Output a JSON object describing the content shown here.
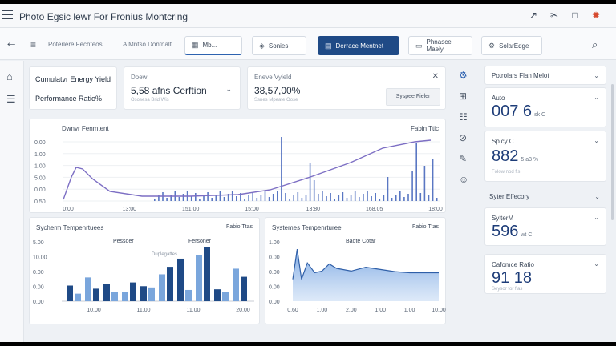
{
  "window": {
    "title": "Photo Egsic lewr For Fronius Montcring"
  },
  "nav": {
    "crumb1": "Poterlere Fechteos",
    "crumb2": "A Mntso Dontnalt...",
    "tabs": [
      {
        "label": "Mb...",
        "icon": "grid-icon"
      },
      {
        "label": "Sonies",
        "icon": "shield-icon"
      },
      {
        "label": "Derrace Mentnet",
        "icon": "table-icon"
      },
      {
        "label": "Phnasce Maeiy",
        "icon": "display-icon"
      },
      {
        "label": "SolarEdge",
        "icon": "settings-icon"
      }
    ]
  },
  "kpis": {
    "cumulative_label": "Cumulatvr Energy Yield",
    "performance_label": "Performance Ratio%",
    "device_label": "Doew",
    "device_value": "5,58 afns Cerftion",
    "device_sub": "Ososesa Brid Wis",
    "energy_label": "Eneve Vyield",
    "energy_value": "38,57,00%",
    "energy_sub": "Ssnes Mpeate Oose",
    "energy_button": "Syspee Fieler"
  },
  "main_chart": {
    "title": "Dwnvr Fenmtent",
    "legend": "Fabin Ttic",
    "ylabels": [
      "0.00",
      "1.00",
      "1.00",
      "5.00",
      "0.00",
      "0.50"
    ],
    "xlabels": [
      "0:00",
      "13:00",
      "151:00",
      "15:00",
      "13:80",
      "168.05",
      "18:00"
    ]
  },
  "bar_chart": {
    "title": "Sycherm Tempenrtuees",
    "legend": "Fabio Ttas",
    "label_a": "Pessoer",
    "label_b": "Fersoner",
    "tag": "Duplegattes",
    "ylabels": [
      "5.00",
      "10.00",
      "0.00",
      "0.00",
      "0.00"
    ],
    "xlabels": [
      "10.00",
      "11.00",
      "11.00",
      "20.00"
    ],
    "chart_data": {
      "type": "bar",
      "series": [
        {
          "name": "Pessoer",
          "values": [
            2.5,
            3.8,
            2.8,
            1.5,
            2.4,
            4.3,
            6.8,
            7.4,
            1.9,
            5.2
          ]
        },
        {
          "name": "Fersoner",
          "values": [
            1.2,
            2.0,
            1.5,
            3.0,
            2.2,
            5.5,
            1.8,
            8.6,
            1.5,
            3.9
          ]
        }
      ],
      "ylim": [
        0,
        10
      ]
    }
  },
  "area_chart": {
    "title": "Systemes Tempenrturee",
    "legend": "Fabio Ttas",
    "label": "Baote Cotar",
    "ylabels": [
      "1.00",
      "0.00",
      "0.00",
      "0.00",
      "0.00"
    ],
    "xlabels": [
      "0.60",
      "1.00",
      "2.00",
      "1:00",
      "1.00",
      "10.00"
    ],
    "chart_data": {
      "type": "area",
      "x": [
        0,
        0.3,
        0.6,
        1,
        1.5,
        2,
        2.5,
        3,
        4,
        5,
        6,
        7,
        8,
        9,
        10
      ],
      "y": [
        0.4,
        0.95,
        0.4,
        0.7,
        0.52,
        0.55,
        0.68,
        0.6,
        0.55,
        0.62,
        0.58,
        0.54,
        0.52,
        0.52,
        0.52
      ],
      "ylim": [
        0,
        1.2
      ]
    }
  },
  "right_panel": {
    "header": "Potrolars Flan Melot",
    "items": [
      {
        "label": "Auto",
        "value": "007 6",
        "unit": "sk C",
        "muted": ""
      },
      {
        "label": "Spicy C",
        "value": "882",
        "unit": "5 a3 %",
        "muted": "Folow nod fis"
      },
      {
        "label": "Syter Effecory",
        "value": "",
        "unit": "",
        "muted": ""
      },
      {
        "label": "SylterM",
        "value": "596",
        "unit": "wt C",
        "muted": ""
      },
      {
        "label": "Cafomce Ratio",
        "value": "91 18",
        "unit": "",
        "muted": "Seysor for flas"
      }
    ]
  }
}
